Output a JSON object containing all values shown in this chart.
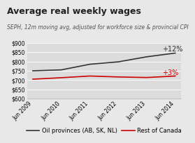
{
  "title": "Average real weekly wages",
  "subtitle": "SEPH, 12m moving avg, adjusted for workforce size & provincial CPI",
  "x_labels": [
    "Jun 2009",
    "Jun 2010",
    "Jun 2011",
    "Jun 2012",
    "Jun 2013",
    "Jun 2014"
  ],
  "oil_provinces": [
    750,
    755,
    785,
    798,
    825,
    845
  ],
  "rest_of_canada": [
    705,
    713,
    722,
    717,
    714,
    722
  ],
  "ylim": [
    600,
    900
  ],
  "yticks": [
    600,
    650,
    700,
    750,
    800,
    850,
    900
  ],
  "line_color_oil": "#333333",
  "line_color_rest": "#cc0000",
  "annotation_oil": "+12%",
  "annotation_rest": "+3%",
  "legend_oil": "Oil provinces (AB, SK, NL)",
  "legend_rest": "Rest of Canada",
  "fig_bg": "#e8e8e8",
  "plot_bg": "#dcdcdc",
  "title_fontsize": 9,
  "subtitle_fontsize": 5.5,
  "tick_fontsize": 5.5,
  "legend_fontsize": 6,
  "annot_oil_fontsize": 7,
  "annot_rest_fontsize": 7
}
